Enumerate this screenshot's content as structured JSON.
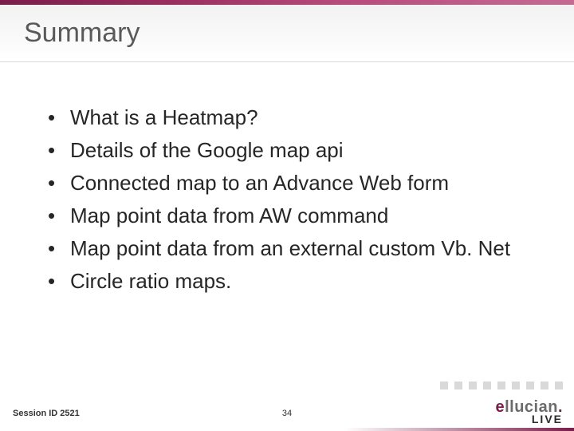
{
  "colors": {
    "top_gradient_start": "#7a1d4a",
    "top_gradient_end": "#c46b92",
    "title_color": "#595959",
    "body_text": "#262626",
    "title_band_top": "#f2f2f2",
    "title_band_bottom": "#ffffff",
    "title_band_border": "#d9d9d9",
    "square_color": "#d9d9d9",
    "logo_gray": "#6b6b6b",
    "logo_accent": "#7a1d4a",
    "logo_live": "#2b2b2b"
  },
  "typography": {
    "title_fontsize": 34,
    "bullet_fontsize": 26,
    "footer_fontsize": 11,
    "logo_main_fontsize": 20,
    "logo_live_fontsize": 14
  },
  "title": "Summary",
  "bullets": [
    "What is a Heatmap?",
    "Details of the Google map api",
    "Connected map to an Advance Web form",
    "Map point data from AW command",
    "Map point data from an external custom Vb. Net",
    "Circle ratio maps."
  ],
  "footer": {
    "session": "Session ID 2521",
    "page": "34"
  },
  "decor": {
    "square_count": 9
  },
  "logo": {
    "name": "ellucian",
    "sub": "LIVE",
    "tag": ""
  }
}
